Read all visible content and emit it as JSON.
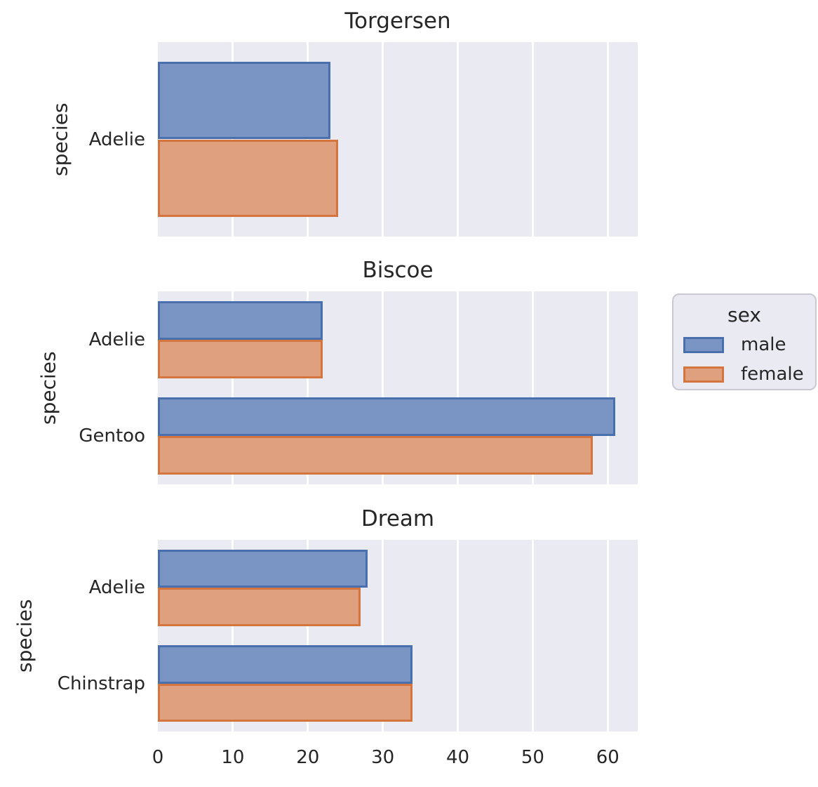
{
  "figure": {
    "background": "#ffffff",
    "text_color": "#262626"
  },
  "colors": {
    "male_fill": "#7a94c4",
    "male_edge": "#4a6fad",
    "female_fill": "#dfa080",
    "female_edge": "#d4753f",
    "axes_background": "#eaeaf2",
    "gridline": "#ffffff",
    "legend_border": "#c9c9d4"
  },
  "legend": {
    "title": "sex",
    "entries": [
      {
        "label": "male",
        "fill": "#7a94c4",
        "edge": "#4a6fad"
      },
      {
        "label": "female",
        "fill": "#dfa080",
        "edge": "#d4753f"
      }
    ]
  },
  "chart_data": [
    {
      "type": "bar",
      "orientation": "horizontal",
      "title": "Torgersen",
      "ylabel": "species",
      "xlabel": "",
      "categories": [
        "Adelie"
      ],
      "series": [
        {
          "name": "male",
          "values": [
            23
          ]
        },
        {
          "name": "female",
          "values": [
            24
          ]
        }
      ],
      "xlim": [
        0,
        64
      ],
      "xticks": [
        0,
        10,
        20,
        30,
        40,
        50,
        60
      ],
      "grid": true,
      "legend_position": "right-of-second-subplot"
    },
    {
      "type": "bar",
      "orientation": "horizontal",
      "title": "Biscoe",
      "ylabel": "species",
      "xlabel": "",
      "categories": [
        "Adelie",
        "Gentoo"
      ],
      "series": [
        {
          "name": "male",
          "values": [
            22,
            61
          ]
        },
        {
          "name": "female",
          "values": [
            22,
            58
          ]
        }
      ],
      "xlim": [
        0,
        64
      ],
      "xticks": [
        0,
        10,
        20,
        30,
        40,
        50,
        60
      ],
      "grid": true
    },
    {
      "type": "bar",
      "orientation": "horizontal",
      "title": "Dream",
      "ylabel": "species",
      "xlabel": "",
      "categories": [
        "Adelie",
        "Chinstrap"
      ],
      "series": [
        {
          "name": "male",
          "values": [
            28,
            34
          ]
        },
        {
          "name": "female",
          "values": [
            27,
            34
          ]
        }
      ],
      "xlim": [
        0,
        64
      ],
      "xticks": [
        0,
        10,
        20,
        30,
        40,
        50,
        60
      ],
      "grid": true
    }
  ]
}
